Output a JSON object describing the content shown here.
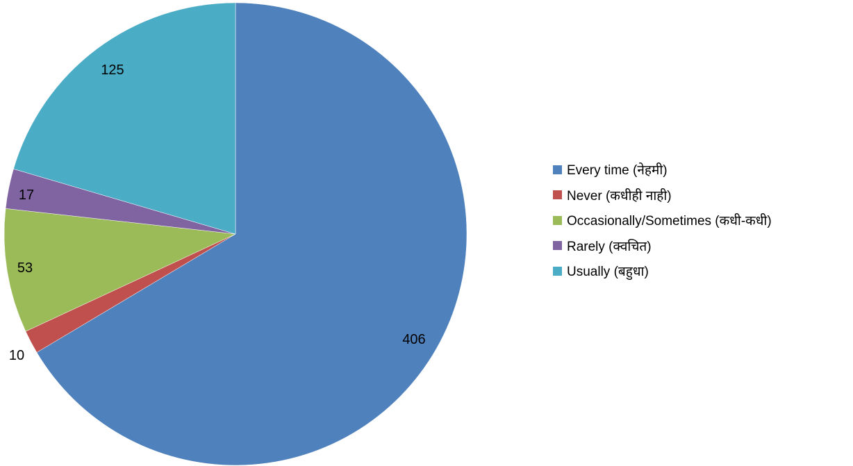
{
  "chart_data": {
    "type": "pie",
    "title": "",
    "categories": [
      "Every time (नेहमी)",
      "Never (कधीही नाही)",
      "Occasionally/Sometimes (कधी-कधी)",
      "Rarely (क्वचित)",
      "Usually (बहुधा)"
    ],
    "values": [
      406,
      10,
      53,
      17,
      125
    ],
    "colors": [
      "#4F81BD",
      "#C0504D",
      "#9BBB59",
      "#8064A2",
      "#4BACC6"
    ],
    "start_angle": "12 o'clock",
    "direction": "clockwise",
    "data_labels": [
      "406",
      "10",
      "53",
      "17",
      "125"
    ],
    "legend_position": "right"
  }
}
